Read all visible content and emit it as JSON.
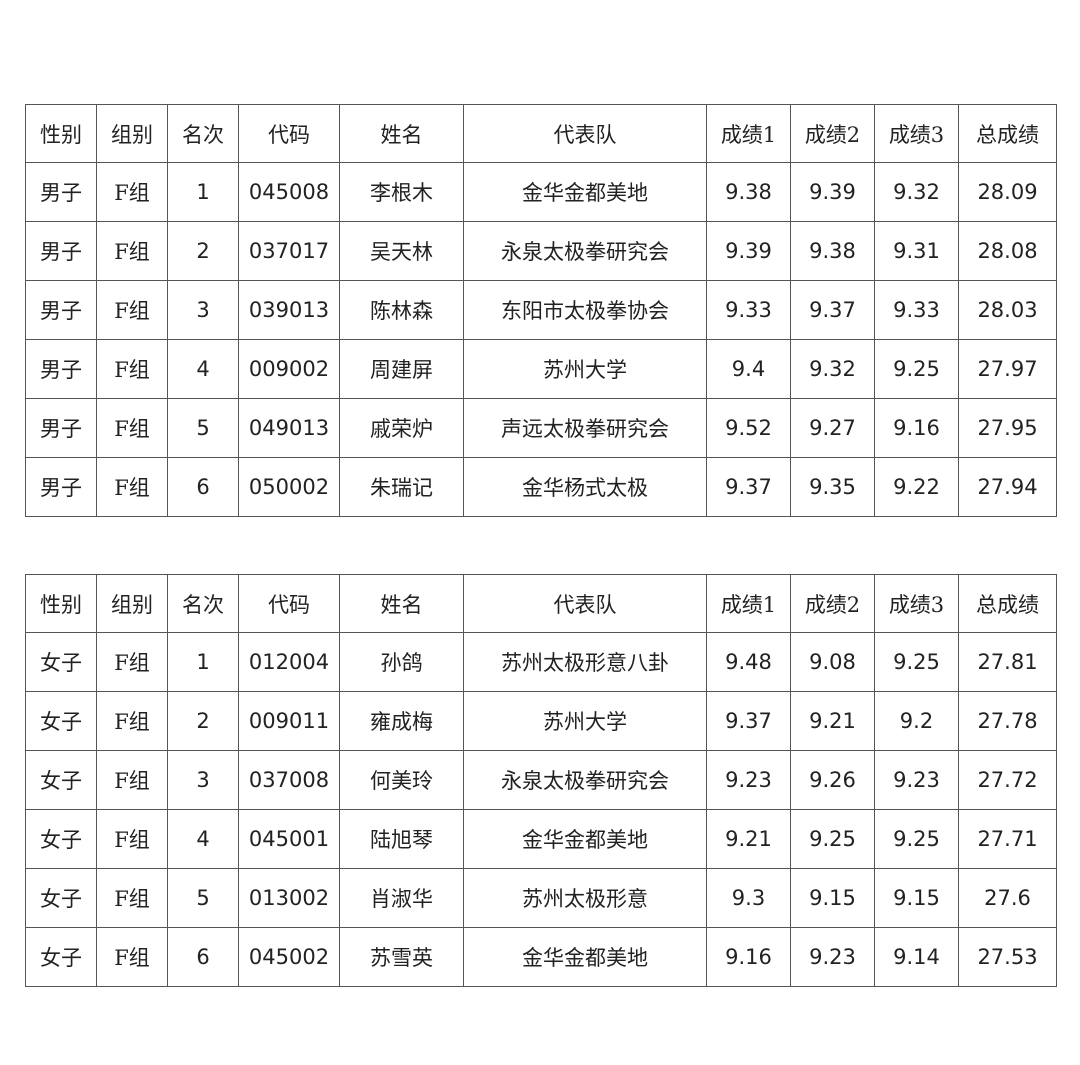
{
  "headers": [
    "性别",
    "组别",
    "名次",
    "代码",
    "姓名",
    "代表队",
    "成绩1",
    "成绩2",
    "成绩3",
    "总成绩"
  ],
  "tables": [
    {
      "rows": [
        [
          "男子",
          "F组",
          "1",
          "045008",
          "李根木",
          "金华金都美地",
          "9.38",
          "9.39",
          "9.32",
          "28.09"
        ],
        [
          "男子",
          "F组",
          "2",
          "037017",
          "吴天林",
          "永泉太极拳研究会",
          "9.39",
          "9.38",
          "9.31",
          "28.08"
        ],
        [
          "男子",
          "F组",
          "3",
          "039013",
          "陈林森",
          "东阳市太极拳协会",
          "9.33",
          "9.37",
          "9.33",
          "28.03"
        ],
        [
          "男子",
          "F组",
          "4",
          "009002",
          "周建屏",
          "苏州大学",
          "9.4",
          "9.32",
          "9.25",
          "27.97"
        ],
        [
          "男子",
          "F组",
          "5",
          "049013",
          "戚荣炉",
          "声远太极拳研究会",
          "9.52",
          "9.27",
          "9.16",
          "27.95"
        ],
        [
          "男子",
          "F组",
          "6",
          "050002",
          "朱瑞记",
          "金华杨式太极",
          "9.37",
          "9.35",
          "9.22",
          "27.94"
        ]
      ]
    },
    {
      "rows": [
        [
          "女子",
          "F组",
          "1",
          "012004",
          "孙鸽",
          "苏州太极形意八卦",
          "9.48",
          "9.08",
          "9.25",
          "27.81"
        ],
        [
          "女子",
          "F组",
          "2",
          "009011",
          "雍成梅",
          "苏州大学",
          "9.37",
          "9.21",
          "9.2",
          "27.78"
        ],
        [
          "女子",
          "F组",
          "3",
          "037008",
          "何美玲",
          "永泉太极拳研究会",
          "9.23",
          "9.26",
          "9.23",
          "27.72"
        ],
        [
          "女子",
          "F组",
          "4",
          "045001",
          "陆旭琴",
          "金华金都美地",
          "9.21",
          "9.25",
          "9.25",
          "27.71"
        ],
        [
          "女子",
          "F组",
          "5",
          "013002",
          "肖淑华",
          "苏州太极形意",
          "9.3",
          "9.15",
          "9.15",
          "27.6"
        ],
        [
          "女子",
          "F组",
          "6",
          "045002",
          "苏雪英",
          "金华金都美地",
          "9.16",
          "9.23",
          "9.14",
          "27.53"
        ]
      ]
    }
  ]
}
